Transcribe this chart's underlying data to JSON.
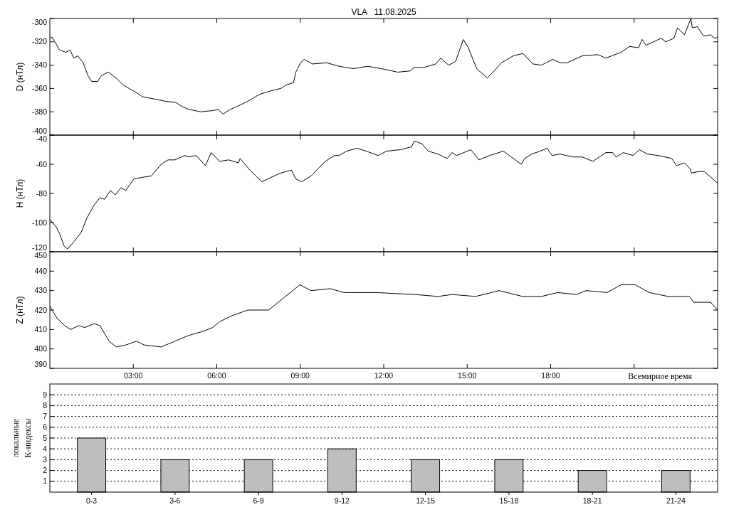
{
  "chart_data": [
    {
      "type": "line",
      "title": "VLA   11.08.2025",
      "ylabel": "D (нТл)",
      "xlim": [
        0,
        24
      ],
      "xticks": [
        3,
        6,
        9,
        12,
        15,
        18,
        21
      ],
      "ylim": [
        -400,
        -300
      ],
      "yticks": [
        -400,
        -380,
        -360,
        -340,
        -320,
        -300
      ],
      "tick_labels": "y",
      "grid": false,
      "x": [
        0,
        0.08,
        0.23,
        0.35,
        0.58,
        0.73,
        0.86,
        1.0,
        1.2,
        1.37,
        1.5,
        1.72,
        1.85,
        2.1,
        2.38,
        2.64,
        2.85,
        3.14,
        3.32,
        3.75,
        4.15,
        4.53,
        4.79,
        5.0,
        5.42,
        5.85,
        6.05,
        6.23,
        6.48,
        6.86,
        7.19,
        7.54,
        7.95,
        8.3,
        8.5,
        8.76,
        8.84,
        9.01,
        9.14,
        9.44,
        9.95,
        10.4,
        10.9,
        11.42,
        11.92,
        12.5,
        12.94,
        13.1,
        13.44,
        13.87,
        14.05,
        14.33,
        14.58,
        14.86,
        15.04,
        15.34,
        15.72,
        15.97,
        16.23,
        16.66,
        17.0,
        17.37,
        17.67,
        18.08,
        18.33,
        18.58,
        19.14,
        19.7,
        19.98,
        20.53,
        20.83,
        21.16,
        21.29,
        21.42,
        21.97,
        22.13,
        22.43,
        22.56,
        22.81,
        23.04,
        23.09,
        23.27,
        23.49,
        23.75,
        23.9,
        24
      ],
      "series": [
        {
          "color": "#000000",
          "values": [
            -317,
            -316,
            -322,
            -327,
            -329,
            -327,
            -334,
            -332,
            -338,
            -349,
            -354,
            -354,
            -349,
            -346,
            -351,
            -357,
            -360,
            -364,
            -367,
            -369,
            -371,
            -372,
            -376,
            -378,
            -380,
            -379,
            -378,
            -382,
            -378,
            -374,
            -370,
            -365,
            -362,
            -360,
            -357,
            -355,
            -346,
            -338,
            -335,
            -339,
            -338,
            -341,
            -343,
            -341,
            -343,
            -346,
            -345,
            -342,
            -342,
            -339,
            -334,
            -340,
            -337,
            -318,
            -325,
            -343,
            -351,
            -345,
            -338,
            -332,
            -330,
            -339,
            -340,
            -335,
            -338,
            -338,
            -332,
            -331,
            -334,
            -329,
            -324,
            -325,
            -318,
            -323,
            -317,
            -320,
            -317,
            -308,
            -314,
            -300,
            -308,
            -307,
            -315,
            -314,
            -317,
            -316
          ]
        }
      ]
    },
    {
      "type": "line",
      "ylabel": "H (нТл)",
      "xlim": [
        0,
        24
      ],
      "xticks": [
        3,
        6,
        9,
        12,
        15,
        18,
        21
      ],
      "ylim": [
        -120,
        -40
      ],
      "yticks": [
        -120,
        -100,
        -80,
        -60,
        -40
      ],
      "tick_labels": "y",
      "grid": false,
      "x": [
        0,
        0.23,
        0.36,
        0.51,
        0.64,
        0.87,
        1.12,
        1.33,
        1.59,
        1.8,
        1.97,
        2.18,
        2.35,
        2.56,
        2.73,
        3.02,
        3.32,
        3.65,
        4.0,
        4.25,
        4.5,
        4.84,
        5.0,
        5.26,
        5.59,
        5.8,
        6.1,
        6.43,
        6.78,
        6.84,
        7.19,
        7.62,
        7.95,
        8.3,
        8.68,
        8.84,
        9.05,
        9.39,
        9.69,
        9.9,
        10.23,
        10.4,
        10.66,
        11.04,
        11.37,
        11.8,
        12.1,
        12.6,
        13.0,
        13.1,
        13.37,
        13.6,
        13.95,
        14.28,
        14.45,
        14.63,
        15.13,
        15.42,
        15.8,
        16.3,
        16.73,
        16.94,
        17.07,
        17.32,
        17.62,
        17.87,
        18.05,
        18.33,
        18.8,
        19.14,
        19.52,
        19.98,
        20.23,
        20.35,
        20.61,
        20.96,
        21.19,
        21.47,
        21.87,
        22.35,
        22.53,
        22.81,
        23.01,
        23.06,
        23.32,
        23.52,
        23.77,
        24
      ],
      "series": [
        {
          "color": "#000000",
          "values": [
            -98,
            -103,
            -108,
            -116,
            -118,
            -113,
            -107,
            -97,
            -88,
            -83,
            -84,
            -78,
            -81,
            -76,
            -78,
            -70,
            -69,
            -68,
            -60,
            -57,
            -57,
            -54,
            -55,
            -54,
            -61,
            -52,
            -58,
            -57,
            -59,
            -56,
            -64,
            -72,
            -69,
            -66,
            -64,
            -70,
            -72,
            -68,
            -62,
            -58,
            -54,
            -54,
            -51,
            -49,
            -51,
            -54,
            -51,
            -50,
            -48,
            -44,
            -46,
            -51,
            -53,
            -56,
            -52,
            -54,
            -50,
            -57,
            -54,
            -51,
            -57,
            -60,
            -56,
            -53,
            -51,
            -49,
            -54,
            -53,
            -55,
            -55,
            -58,
            -52,
            -52,
            -55,
            -52,
            -54,
            -50,
            -53,
            -54,
            -56,
            -61,
            -59,
            -63,
            -66,
            -65,
            -65,
            -69,
            -73
          ]
        }
      ]
    },
    {
      "type": "line",
      "ylabel": "Z (нТл)",
      "xlabel": "Всемирное время",
      "xlim": [
        0,
        24
      ],
      "xticks": [
        {
          "value": 3,
          "label": "03:00"
        },
        {
          "value": 6,
          "label": "06:00"
        },
        {
          "value": 9,
          "label": "09:00"
        },
        {
          "value": 12,
          "label": "12:00"
        },
        {
          "value": 15,
          "label": "15:00"
        },
        {
          "value": 18,
          "label": "18:00"
        },
        {
          "value": 21,
          "label": null
        }
      ],
      "ylim": [
        390,
        450
      ],
      "yticks": [
        390,
        400,
        410,
        420,
        430,
        440,
        450
      ],
      "grid": false,
      "x": [
        0,
        0.25,
        0.53,
        0.75,
        1.04,
        1.25,
        1.6,
        1.8,
        2.13,
        2.39,
        2.73,
        3.11,
        3.4,
        4.0,
        4.5,
        5.0,
        5.5,
        5.85,
        6.1,
        6.53,
        7.11,
        7.44,
        7.87,
        8.38,
        8.99,
        9.39,
        10.07,
        10.58,
        11.75,
        13.1,
        13.95,
        14.46,
        15.3,
        16.15,
        16.99,
        17.67,
        18.25,
        18.93,
        19.27,
        20.03,
        20.53,
        21.04,
        21.54,
        22.23,
        22.99,
        23.14,
        23.75,
        24
      ],
      "series": [
        {
          "color": "#000000",
          "values": [
            422,
            416,
            412,
            410,
            412,
            411,
            413,
            412,
            404,
            401,
            402,
            404,
            402,
            401,
            404,
            407,
            409,
            411,
            414,
            417,
            420,
            420,
            420,
            426,
            433,
            430,
            431,
            429,
            429,
            428,
            427,
            428,
            427,
            430,
            427,
            427,
            429,
            428,
            430,
            429,
            433,
            433,
            429,
            427,
            427,
            424,
            424,
            420
          ]
        }
      ]
    },
    {
      "type": "bar",
      "ylabel": "локальные К-индексы",
      "categories": [
        "0-3",
        "3-6",
        "6-9",
        "9-12",
        "12-15",
        "15-18",
        "18-21",
        "21-24"
      ],
      "values": [
        5,
        3,
        3,
        4,
        3,
        3,
        2,
        2
      ],
      "color": "#bebebe",
      "ylim": [
        0,
        10
      ],
      "yticks": [
        1,
        2,
        3,
        4,
        5,
        6,
        7,
        8,
        9
      ],
      "grid": "y"
    }
  ]
}
